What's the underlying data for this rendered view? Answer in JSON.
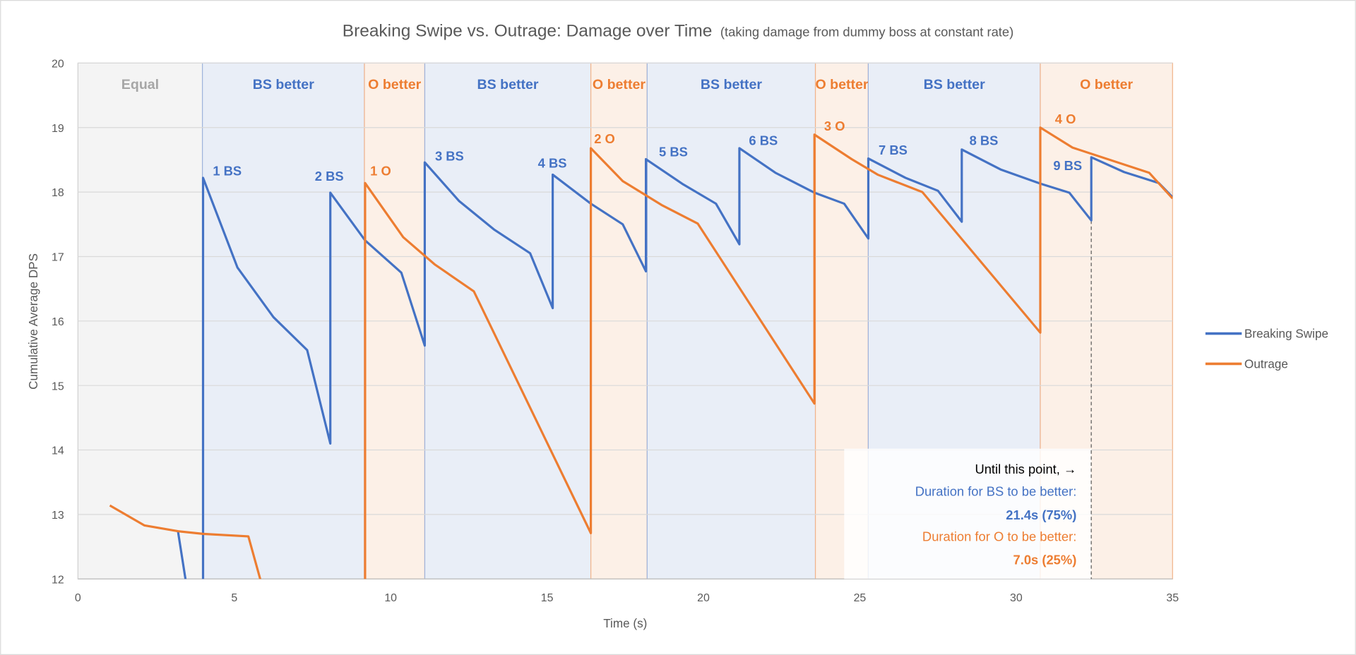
{
  "chart_data": {
    "type": "line",
    "title": "Breaking Swipe vs. Outrage: Damage over Time",
    "subtitle": "(taking damage from dummy boss at constant rate)",
    "xlabel": "Time (s)",
    "ylabel": "Cumulative Average DPS",
    "xlim": [
      0,
      35
    ],
    "ylim": [
      12,
      20
    ],
    "x_ticks": [
      "0",
      "5",
      "10",
      "15",
      "20",
      "25",
      "30",
      "35"
    ],
    "y_ticks": [
      "12",
      "13",
      "14",
      "15",
      "16",
      "17",
      "18",
      "19",
      "20"
    ],
    "grid": "horizontal",
    "legend_position": "right",
    "colors": {
      "bs": "#4472c4",
      "o": "#ed7d31",
      "equal_text": "#a6a6a6",
      "equal_bg": "#f4f4f4",
      "bs_bg": "#e9eef7",
      "o_bg": "#fcf0e7"
    },
    "series": [
      {
        "name": "Breaking Swipe",
        "color": "#4472c4",
        "points": [
          [
            3.2,
            12.74
          ],
          [
            3.6,
            11.5
          ],
          [
            4.0,
            11.5
          ],
          [
            4.0,
            18.22
          ],
          [
            5.1,
            16.83
          ],
          [
            6.25,
            16.06
          ],
          [
            7.33,
            15.55
          ],
          [
            8.07,
            14.1
          ],
          [
            8.07,
            17.99
          ],
          [
            9.18,
            17.25
          ],
          [
            10.34,
            16.75
          ],
          [
            11.09,
            15.62
          ],
          [
            11.09,
            18.46
          ],
          [
            12.19,
            17.86
          ],
          [
            13.3,
            17.42
          ],
          [
            14.46,
            17.05
          ],
          [
            15.18,
            16.2
          ],
          [
            15.18,
            18.27
          ],
          [
            16.4,
            17.82
          ],
          [
            17.42,
            17.5
          ],
          [
            18.16,
            16.77
          ],
          [
            18.16,
            18.51
          ],
          [
            19.35,
            18.12
          ],
          [
            20.4,
            17.82
          ],
          [
            21.15,
            17.19
          ],
          [
            21.15,
            18.68
          ],
          [
            22.3,
            18.3
          ],
          [
            23.55,
            17.99
          ],
          [
            24.5,
            17.82
          ],
          [
            25.27,
            17.28
          ],
          [
            25.27,
            18.52
          ],
          [
            26.46,
            18.22
          ],
          [
            27.5,
            18.02
          ],
          [
            28.26,
            17.54
          ],
          [
            28.26,
            18.66
          ],
          [
            29.5,
            18.35
          ],
          [
            30.77,
            18.13
          ],
          [
            31.7,
            17.99
          ],
          [
            32.4,
            17.56
          ],
          [
            32.4,
            18.54
          ],
          [
            33.45,
            18.31
          ],
          [
            34.56,
            18.14
          ],
          [
            35.0,
            17.92
          ]
        ]
      },
      {
        "name": "Outrage",
        "color": "#ed7d31",
        "points": [
          [
            1.02,
            13.14
          ],
          [
            2.13,
            12.83
          ],
          [
            3.21,
            12.74
          ],
          [
            4.0,
            12.7
          ],
          [
            5.45,
            12.66
          ],
          [
            6.0,
            11.7
          ],
          [
            9.18,
            11.5
          ],
          [
            9.18,
            18.14
          ],
          [
            10.4,
            17.3
          ],
          [
            11.4,
            16.88
          ],
          [
            12.66,
            16.46
          ],
          [
            16.4,
            12.71
          ],
          [
            16.4,
            18.68
          ],
          [
            17.42,
            18.17
          ],
          [
            18.66,
            17.8
          ],
          [
            19.82,
            17.51
          ],
          [
            23.55,
            14.72
          ],
          [
            23.55,
            18.89
          ],
          [
            24.74,
            18.51
          ],
          [
            25.57,
            18.27
          ],
          [
            27.0,
            18.0
          ],
          [
            30.77,
            15.82
          ],
          [
            30.77,
            19.0
          ],
          [
            31.8,
            18.69
          ],
          [
            34.25,
            18.3
          ],
          [
            35.0,
            17.9
          ]
        ]
      }
    ],
    "regions": [
      {
        "label": "Equal",
        "kind": "equal",
        "from": 0,
        "to": 3.98
      },
      {
        "label": "BS better",
        "kind": "bs",
        "from": 3.98,
        "to": 9.16
      },
      {
        "label": "O better",
        "kind": "o",
        "from": 9.16,
        "to": 11.09
      },
      {
        "label": "BS better",
        "kind": "bs",
        "from": 11.09,
        "to": 16.4
      },
      {
        "label": "O better",
        "kind": "o",
        "from": 16.4,
        "to": 18.2
      },
      {
        "label": "BS better",
        "kind": "bs",
        "from": 18.2,
        "to": 23.58
      },
      {
        "label": "O better",
        "kind": "o",
        "from": 23.58,
        "to": 25.27
      },
      {
        "label": "BS better",
        "kind": "bs",
        "from": 25.27,
        "to": 30.77
      },
      {
        "label": "O better",
        "kind": "o",
        "from": 30.77,
        "to": 35
      }
    ],
    "point_labels": [
      {
        "text": "1 BS",
        "kind": "bs"
      },
      {
        "text": "2 BS",
        "kind": "bs"
      },
      {
        "text": "1 O",
        "kind": "o"
      },
      {
        "text": "3 BS",
        "kind": "bs"
      },
      {
        "text": "4 BS",
        "kind": "bs"
      },
      {
        "text": "2 O",
        "kind": "o"
      },
      {
        "text": "5 BS",
        "kind": "bs"
      },
      {
        "text": "6 BS",
        "kind": "bs"
      },
      {
        "text": "3 O",
        "kind": "o"
      },
      {
        "text": "7 BS",
        "kind": "bs"
      },
      {
        "text": "8 BS",
        "kind": "bs"
      },
      {
        "text": "4 O",
        "kind": "o"
      },
      {
        "text": "9 BS",
        "kind": "bs"
      }
    ],
    "marker_time": 32.4,
    "annotation": {
      "line1": "Until this point, →",
      "line2": "Duration for BS to be better:",
      "line3": "21.4s (75%)",
      "line4": "Duration for O to be better:",
      "line5": "7.0s (25%)"
    }
  }
}
